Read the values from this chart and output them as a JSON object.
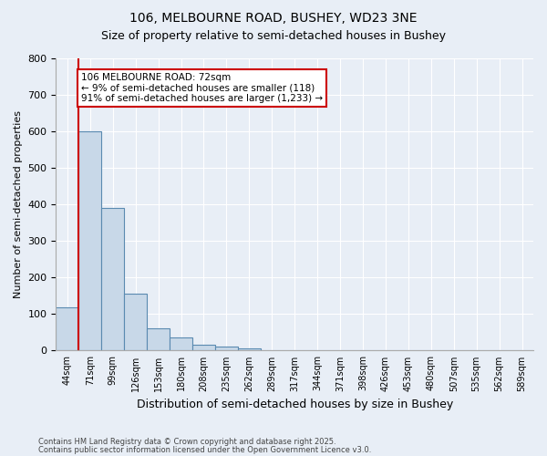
{
  "title1": "106, MELBOURNE ROAD, BUSHEY, WD23 3NE",
  "title2": "Size of property relative to semi-detached houses in Bushey",
  "xlabel": "Distribution of semi-detached houses by size in Bushey",
  "ylabel": "Number of semi-detached properties",
  "bins": [
    "44sqm",
    "71sqm",
    "99sqm",
    "126sqm",
    "153sqm",
    "180sqm",
    "208sqm",
    "235sqm",
    "262sqm",
    "289sqm",
    "317sqm",
    "344sqm",
    "371sqm",
    "398sqm",
    "426sqm",
    "453sqm",
    "480sqm",
    "507sqm",
    "535sqm",
    "562sqm",
    "589sqm"
  ],
  "values": [
    118,
    600,
    390,
    155,
    60,
    35,
    15,
    10,
    5,
    1,
    0,
    0,
    0,
    0,
    0,
    0,
    0,
    0,
    0,
    0,
    0
  ],
  "bar_color": "#c8d8e8",
  "bar_edge_color": "#5a8ab0",
  "highlight_color": "#cc0000",
  "annotation_title": "106 MELBOURNE ROAD: 72sqm",
  "annotation_line1": "← 9% of semi-detached houses are smaller (118)",
  "annotation_line2": "91% of semi-detached houses are larger (1,233) →",
  "ylim": [
    0,
    800
  ],
  "yticks": [
    0,
    100,
    200,
    300,
    400,
    500,
    600,
    700,
    800
  ],
  "footer1": "Contains HM Land Registry data © Crown copyright and database right 2025.",
  "footer2": "Contains public sector information licensed under the Open Government Licence v3.0.",
  "bg_color": "#e8eef6",
  "plot_bg_color": "#e8eef6"
}
